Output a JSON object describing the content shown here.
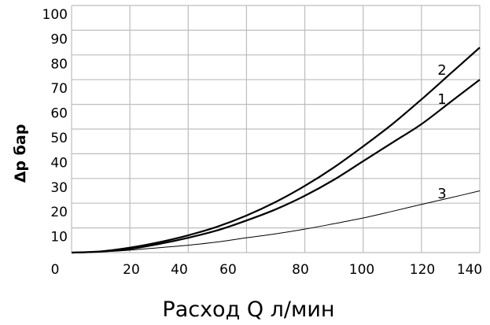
{
  "chart_data": {
    "type": "line",
    "title": "",
    "xlabel": "Расход Q л/мин",
    "ylabel": "Δp бар",
    "xlim": [
      0,
      140
    ],
    "ylim": [
      0,
      100
    ],
    "grid": true,
    "x_ticks": [
      "0",
      "20",
      "40",
      "60",
      "80",
      "100",
      "120",
      "140"
    ],
    "y_ticks": [
      "10",
      "20",
      "30",
      "40",
      "50",
      "60",
      "70",
      "80",
      "90",
      "100"
    ],
    "x": [
      0,
      10,
      20,
      30,
      40,
      50,
      60,
      70,
      80,
      90,
      100,
      110,
      120,
      130,
      140
    ],
    "series": [
      {
        "name": "1",
        "values": [
          0,
          0.4,
          1.5,
          3.5,
          6,
          9,
          13,
          17.5,
          23,
          29.5,
          37,
          44.5,
          52,
          61,
          70
        ],
        "color": "#000000",
        "width": "thick"
      },
      {
        "name": "2",
        "values": [
          0,
          0.5,
          2,
          4.2,
          7,
          10.5,
          15,
          20.5,
          27,
          34.5,
          43,
          52,
          62,
          72.5,
          83
        ],
        "color": "#000000",
        "width": "thick"
      },
      {
        "name": "3",
        "values": [
          0,
          0.3,
          1,
          2,
          3,
          4.3,
          6,
          7.6,
          9.5,
          11.7,
          14,
          16.7,
          19.5,
          22.2,
          25
        ],
        "color": "#000000",
        "width": "thin"
      }
    ]
  }
}
